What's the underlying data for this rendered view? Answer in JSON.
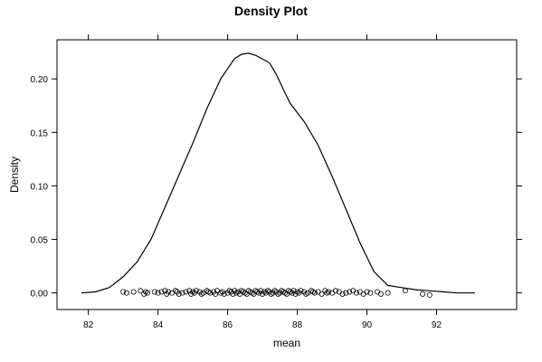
{
  "chart_data": {
    "type": "line",
    "title": "Density Plot",
    "xlabel": "mean",
    "ylabel": "Density",
    "xlim": [
      81.1,
      94.3
    ],
    "ylim": [
      -0.0155,
      0.2365
    ],
    "x_ticks": [
      82,
      84,
      86,
      88,
      90,
      92
    ],
    "x_tick_labels": [
      "82",
      "84",
      "86",
      "88",
      "90",
      "92"
    ],
    "y_ticks": [
      0.0,
      0.05,
      0.1,
      0.15,
      0.2
    ],
    "y_tick_labels": [
      "0.00",
      "0.05",
      "0.10",
      "0.15",
      "0.20"
    ],
    "grid": false,
    "legend": "none",
    "series": [
      {
        "style": "line",
        "x": [
          81.8,
          82.2,
          82.6,
          83.0,
          83.4,
          83.8,
          84.2,
          84.6,
          85.0,
          85.4,
          85.8,
          86.2,
          86.4,
          86.6,
          86.8,
          87.2,
          87.4,
          87.6,
          87.8,
          88.2,
          88.6,
          89.0,
          89.4,
          89.8,
          90.2,
          90.6,
          91.0,
          91.4,
          91.8,
          92.2,
          92.6,
          93.0,
          93.1
        ],
        "y": [
          0.0,
          0.001,
          0.005,
          0.015,
          0.029,
          0.05,
          0.08,
          0.11,
          0.14,
          0.172,
          0.2,
          0.219,
          0.223,
          0.224,
          0.222,
          0.215,
          0.204,
          0.19,
          0.177,
          0.16,
          0.138,
          0.109,
          0.078,
          0.047,
          0.02,
          0.007,
          0.005,
          0.003,
          0.002,
          0.001,
          0.0,
          0.0,
          0.0
        ]
      },
      {
        "style": "rug-points",
        "x": [
          83.0,
          83.1,
          83.3,
          83.5,
          83.6,
          83.65,
          83.7,
          83.9,
          84.0,
          84.1,
          84.2,
          84.25,
          84.3,
          84.4,
          84.5,
          84.55,
          84.6,
          84.7,
          84.8,
          84.9,
          84.95,
          85.0,
          85.05,
          85.1,
          85.2,
          85.25,
          85.3,
          85.4,
          85.45,
          85.5,
          85.6,
          85.65,
          85.7,
          85.8,
          85.85,
          85.9,
          86.0,
          86.05,
          86.1,
          86.15,
          86.2,
          86.25,
          86.3,
          86.35,
          86.4,
          86.45,
          86.5,
          86.55,
          86.6,
          86.65,
          86.7,
          86.75,
          86.8,
          86.85,
          86.9,
          86.95,
          87.0,
          87.05,
          87.1,
          87.15,
          87.2,
          87.25,
          87.3,
          87.35,
          87.4,
          87.45,
          87.5,
          87.55,
          87.6,
          87.65,
          87.7,
          87.75,
          87.8,
          87.85,
          87.9,
          87.95,
          88.0,
          88.05,
          88.1,
          88.2,
          88.25,
          88.3,
          88.4,
          88.45,
          88.5,
          88.6,
          88.7,
          88.8,
          88.85,
          88.9,
          89.0,
          89.1,
          89.2,
          89.3,
          89.4,
          89.5,
          89.6,
          89.7,
          89.8,
          89.9,
          90.0,
          90.1,
          90.3,
          90.4,
          90.6,
          91.1,
          91.6,
          91.8
        ],
        "y": [
          0.001,
          0.0,
          0.001,
          0.002,
          -0.001,
          0.001,
          0.0,
          0.001,
          0.0,
          0.001,
          0.002,
          -0.001,
          0.001,
          0.0,
          0.002,
          0.001,
          -0.001,
          0.0,
          0.001,
          0.002,
          -0.001,
          0.001,
          0.0,
          0.002,
          0.001,
          -0.001,
          0.0,
          0.002,
          0.001,
          0.0,
          0.001,
          -0.001,
          0.002,
          0.0,
          0.001,
          -0.001,
          0.0,
          0.002,
          0.001,
          -0.001,
          0.002,
          0.0,
          0.001,
          -0.001,
          0.002,
          0.001,
          0.0,
          -0.001,
          0.002,
          0.001,
          0.0,
          -0.001,
          0.002,
          0.001,
          0.0,
          0.002,
          -0.001,
          0.001,
          0.0,
          0.002,
          0.001,
          -0.001,
          0.0,
          0.002,
          0.001,
          -0.001,
          0.0,
          0.002,
          0.001,
          0.0,
          -0.001,
          0.002,
          0.001,
          0.0,
          0.002,
          -0.001,
          0.001,
          0.0,
          0.002,
          0.001,
          -0.001,
          0.0,
          0.002,
          0.001,
          0.0,
          0.001,
          -0.001,
          0.002,
          0.0,
          0.001,
          0.0,
          0.002,
          0.001,
          -0.001,
          0.0,
          0.001,
          0.002,
          0.0,
          0.001,
          -0.001,
          0.001,
          0.0,
          0.001,
          -0.001,
          0.0,
          0.002,
          -0.001,
          -0.002
        ]
      }
    ]
  }
}
